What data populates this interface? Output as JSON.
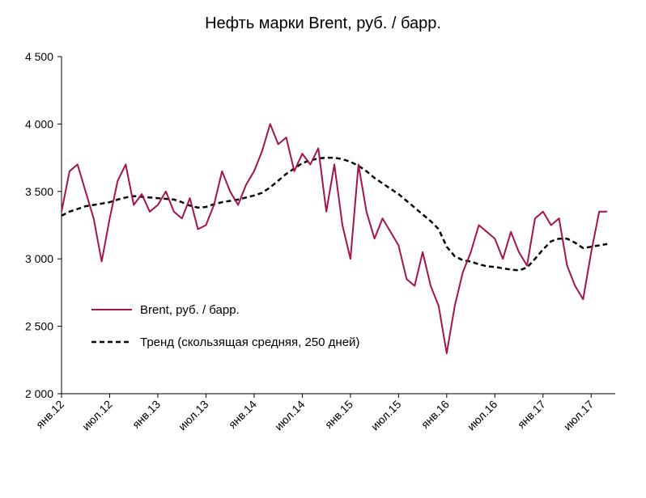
{
  "chart_data": {
    "type": "line",
    "title": "Нефть марки Brent, руб. / барр.",
    "ylim": [
      2000,
      4500
    ],
    "yticks": [
      "4 500",
      "4 000",
      "3 500",
      "3 000",
      "2 500",
      "2 000"
    ],
    "ytick_values": [
      4500,
      4000,
      3500,
      3000,
      2500,
      2000
    ],
    "xlim": [
      "2012-01",
      "2017-10"
    ],
    "xticks": [
      "янв.12",
      "июл.12",
      "янв.13",
      "июл.13",
      "янв.14",
      "июл.14",
      "янв.15",
      "июл.15",
      "янв.16",
      "июл.16",
      "янв.17",
      "июл.17"
    ],
    "xtick_dates": [
      "2012-01",
      "2012-07",
      "2013-01",
      "2013-07",
      "2014-01",
      "2014-07",
      "2015-01",
      "2015-07",
      "2016-01",
      "2016-07",
      "2017-01",
      "2017-07"
    ],
    "legend_position": "center-left",
    "grid": false,
    "series": [
      {
        "name": "Brent, руб. / барр.",
        "color": "#a5134d",
        "style": "solid",
        "x": [
          "2012-01",
          "2012-02",
          "2012-03",
          "2012-04",
          "2012-05",
          "2012-06",
          "2012-07",
          "2012-08",
          "2012-09",
          "2012-10",
          "2012-11",
          "2012-12",
          "2013-01",
          "2013-02",
          "2013-03",
          "2013-04",
          "2013-05",
          "2013-06",
          "2013-07",
          "2013-08",
          "2013-09",
          "2013-10",
          "2013-11",
          "2013-12",
          "2014-01",
          "2014-02",
          "2014-03",
          "2014-04",
          "2014-05",
          "2014-06",
          "2014-07",
          "2014-08",
          "2014-09",
          "2014-10",
          "2014-11",
          "2014-12",
          "2015-01",
          "2015-02",
          "2015-03",
          "2015-04",
          "2015-05",
          "2015-06",
          "2015-07",
          "2015-08",
          "2015-09",
          "2015-10",
          "2015-11",
          "2015-12",
          "2016-01",
          "2016-02",
          "2016-03",
          "2016-04",
          "2016-05",
          "2016-06",
          "2016-07",
          "2016-08",
          "2016-09",
          "2016-10",
          "2016-11",
          "2016-12",
          "2017-01",
          "2017-02",
          "2017-03",
          "2017-04",
          "2017-05",
          "2017-06",
          "2017-07",
          "2017-08",
          "2017-09"
        ],
        "values": [
          3350,
          3650,
          3700,
          3500,
          3300,
          2980,
          3300,
          3580,
          3700,
          3400,
          3480,
          3350,
          3400,
          3500,
          3350,
          3300,
          3450,
          3220,
          3250,
          3400,
          3650,
          3500,
          3400,
          3550,
          3650,
          3800,
          4000,
          3850,
          3900,
          3650,
          3780,
          3700,
          3820,
          3350,
          3700,
          3250,
          3000,
          3700,
          3350,
          3150,
          3300,
          3200,
          3100,
          2850,
          2800,
          3050,
          2800,
          2650,
          2300,
          2650,
          2900,
          3050,
          3250,
          3200,
          3150,
          3000,
          3200,
          3050,
          2950,
          3300,
          3350,
          3250,
          3300,
          2950,
          2800,
          2700,
          3050,
          3350,
          3350
        ]
      },
      {
        "name": "Тренд (скользящая средняя, 250 дней)",
        "color": "#000000",
        "style": "dashed",
        "x": [
          "2012-01",
          "2012-02",
          "2012-03",
          "2012-04",
          "2012-05",
          "2012-06",
          "2012-07",
          "2012-08",
          "2012-09",
          "2012-10",
          "2012-11",
          "2012-12",
          "2013-01",
          "2013-02",
          "2013-03",
          "2013-04",
          "2013-05",
          "2013-06",
          "2013-07",
          "2013-08",
          "2013-09",
          "2013-10",
          "2013-11",
          "2013-12",
          "2014-01",
          "2014-02",
          "2014-03",
          "2014-04",
          "2014-05",
          "2014-06",
          "2014-07",
          "2014-08",
          "2014-09",
          "2014-10",
          "2014-11",
          "2014-12",
          "2015-01",
          "2015-02",
          "2015-03",
          "2015-04",
          "2015-05",
          "2015-06",
          "2015-07",
          "2015-08",
          "2015-09",
          "2015-10",
          "2015-11",
          "2015-12",
          "2016-01",
          "2016-02",
          "2016-03",
          "2016-04",
          "2016-05",
          "2016-06",
          "2016-07",
          "2016-08",
          "2016-09",
          "2016-10",
          "2016-11",
          "2016-12",
          "2017-01",
          "2017-02",
          "2017-03",
          "2017-04",
          "2017-05",
          "2017-06",
          "2017-07",
          "2017-08",
          "2017-09"
        ],
        "values": [
          3320,
          3350,
          3370,
          3390,
          3400,
          3410,
          3420,
          3440,
          3455,
          3465,
          3460,
          3455,
          3450,
          3445,
          3440,
          3420,
          3395,
          3380,
          3385,
          3405,
          3420,
          3430,
          3440,
          3455,
          3470,
          3490,
          3530,
          3580,
          3630,
          3670,
          3710,
          3730,
          3745,
          3750,
          3750,
          3740,
          3720,
          3690,
          3650,
          3600,
          3560,
          3520,
          3480,
          3430,
          3380,
          3330,
          3280,
          3220,
          3090,
          3020,
          2990,
          2980,
          2960,
          2945,
          2940,
          2930,
          2920,
          2915,
          2935,
          3000,
          3070,
          3130,
          3150,
          3150,
          3120,
          3080,
          3090,
          3100,
          3110
        ]
      }
    ]
  }
}
